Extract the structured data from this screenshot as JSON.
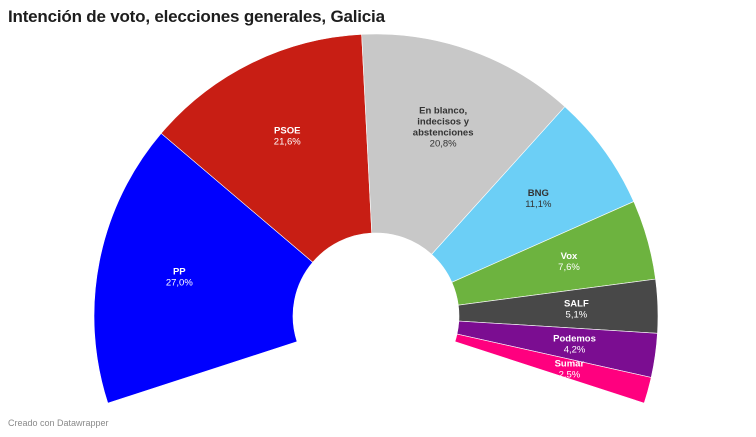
{
  "title": "Intención de voto, elecciones generales, Galicia",
  "footer": "Creado con Datawrapper",
  "chart_data": {
    "type": "pie",
    "variant": "semi-donut (parliament-style arc)",
    "title": "Intención de voto, elecciones generales, Galicia",
    "unit": "%",
    "categories": [
      "PP",
      "PSOE",
      "En blanco, indecisos y abstenciones",
      "BNG",
      "Vox",
      "SALF",
      "Podemos",
      "Sumar"
    ],
    "values": [
      27.0,
      21.6,
      20.8,
      11.1,
      7.6,
      5.1,
      4.2,
      2.5
    ],
    "value_labels": [
      "27,0%",
      "21,6%",
      "20,8%",
      "11,1%",
      "7,6%",
      "5,1%",
      "4,2%",
      "2,5%"
    ],
    "colors": [
      "#0000ff",
      "#c81e14",
      "#c8c8c8",
      "#6ccff6",
      "#6db33f",
      "#484848",
      "#7b0d91",
      "#ff007f"
    ],
    "label_colors": [
      "#ffffff",
      "#ffffff",
      "#333333",
      "#333333",
      "#ffffff",
      "#ffffff",
      "#ffffff",
      "#ffffff"
    ],
    "label_lines": [
      [
        "PP"
      ],
      [
        "PSOE"
      ],
      [
        "En blanco,",
        "indecisos y",
        "abstenciones"
      ],
      [
        "BNG"
      ],
      [
        "Vox"
      ],
      [
        "SALF"
      ],
      [
        "Podemos"
      ],
      [
        "Sumar"
      ]
    ],
    "legend": "none (inline labels)"
  }
}
